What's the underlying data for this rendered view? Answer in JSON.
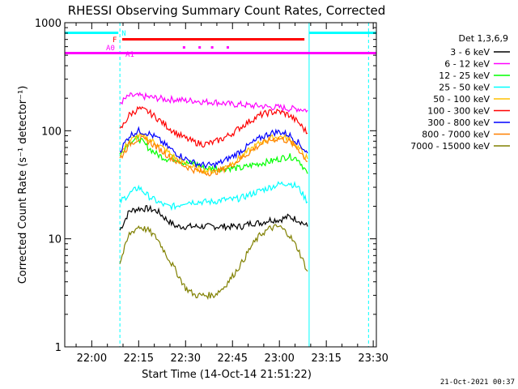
{
  "chart_data": {
    "type": "line",
    "title": "RHESSI Observing Summary Count Rates, Corrected",
    "xlabel": "Start Time (14-Oct-14 21:51:22)",
    "ylabel": "Corrected Count Rate (s⁻¹ detector⁻¹)",
    "y_scale": "log",
    "ylim": [
      1,
      1000
    ],
    "xlim": [
      "21:51:22",
      "23:31:00"
    ],
    "x_ticks": [
      "22:00",
      "22:15",
      "22:30",
      "22:45",
      "23:00",
      "23:15",
      "23:30"
    ],
    "y_ticks": [
      "1",
      "10",
      "100",
      "1000"
    ],
    "legend_title": "Det 1,3,6,9",
    "legend_position": "top-right",
    "footer_timestamp": "21-Oct-2021 00:37",
    "flags": {
      "night_label": "N",
      "flare_label": "F",
      "attenuator_labels": [
        "A0",
        "A1"
      ],
      "night_intervals": [
        [
          "21:51:22",
          "22:08:30"
        ],
        [
          "23:09:30",
          "23:31:00"
        ]
      ],
      "flare_interval": [
        "22:09:45",
        "23:08:00"
      ],
      "attenuator_interval": [
        "21:51:22",
        "23:31:00"
      ],
      "saa_dots": [
        "22:29:30",
        "22:34:30",
        "22:38:30",
        "22:43:30"
      ],
      "night_color": "#00ffff",
      "flare_color": "#ff0000",
      "attenuator_color": "#ff00ff"
    },
    "vertical_lines": [
      "22:09:00",
      "23:09:30",
      "23:28:30"
    ],
    "x": [
      "22:09",
      "22:12",
      "22:15",
      "22:18",
      "22:21",
      "22:24",
      "22:27",
      "22:30",
      "22:33",
      "22:36",
      "22:39",
      "22:42",
      "22:45",
      "22:48",
      "22:51",
      "22:54",
      "22:57",
      "23:00",
      "23:03",
      "23:06",
      "23:09"
    ],
    "series": [
      {
        "name": "3 - 6 keV",
        "color": "#000000",
        "values": [
          12,
          18,
          19,
          19,
          18,
          15,
          13,
          13,
          13,
          13,
          13,
          13,
          13,
          13,
          14,
          14,
          15,
          15,
          16,
          15,
          13
        ]
      },
      {
        "name": "6 - 12 keV",
        "color": "#ff00ff",
        "values": [
          180,
          210,
          210,
          205,
          200,
          195,
          195,
          190,
          190,
          185,
          185,
          180,
          175,
          175,
          170,
          170,
          165,
          165,
          160,
          160,
          155
        ]
      },
      {
        "name": "12 - 25 keV",
        "color": "#00ff00",
        "values": [
          60,
          80,
          85,
          70,
          60,
          55,
          55,
          50,
          50,
          45,
          45,
          45,
          45,
          45,
          48,
          50,
          52,
          55,
          58,
          55,
          40
        ]
      },
      {
        "name": "25 - 50 keV",
        "color": "#00ffff",
        "values": [
          22,
          26,
          30,
          25,
          22,
          20,
          20,
          22,
          22,
          22,
          22,
          23,
          23,
          24,
          26,
          28,
          30,
          32,
          33,
          30,
          22
        ]
      },
      {
        "name": "50 - 100 keV",
        "color": "#ffc000",
        "values": [
          60,
          80,
          90,
          85,
          75,
          65,
          55,
          50,
          45,
          43,
          42,
          45,
          50,
          58,
          68,
          78,
          85,
          88,
          85,
          70,
          55
        ]
      },
      {
        "name": "100 - 300 keV",
        "color": "#ff0000",
        "values": [
          100,
          140,
          160,
          150,
          130,
          110,
          95,
          85,
          78,
          75,
          78,
          85,
          95,
          110,
          125,
          140,
          148,
          150,
          140,
          120,
          95
        ]
      },
      {
        "name": "300 - 800 keV",
        "color": "#0000ff",
        "values": [
          65,
          90,
          100,
          95,
          85,
          72,
          62,
          55,
          50,
          48,
          48,
          52,
          58,
          66,
          76,
          86,
          95,
          98,
          92,
          78,
          62
        ]
      },
      {
        "name": "800 - 7000 keV",
        "color": "#ff8000",
        "values": [
          55,
          75,
          85,
          80,
          70,
          60,
          52,
          47,
          43,
          41,
          41,
          44,
          49,
          56,
          65,
          75,
          82,
          85,
          80,
          68,
          52
        ]
      },
      {
        "name": "7000 - 15000 keV",
        "color": "#808000",
        "values": [
          6,
          11,
          13,
          12,
          10,
          7,
          5,
          3.5,
          3,
          3,
          3,
          3.5,
          4.5,
          6,
          8.5,
          11,
          12.5,
          13,
          11,
          8,
          5
        ]
      }
    ]
  }
}
